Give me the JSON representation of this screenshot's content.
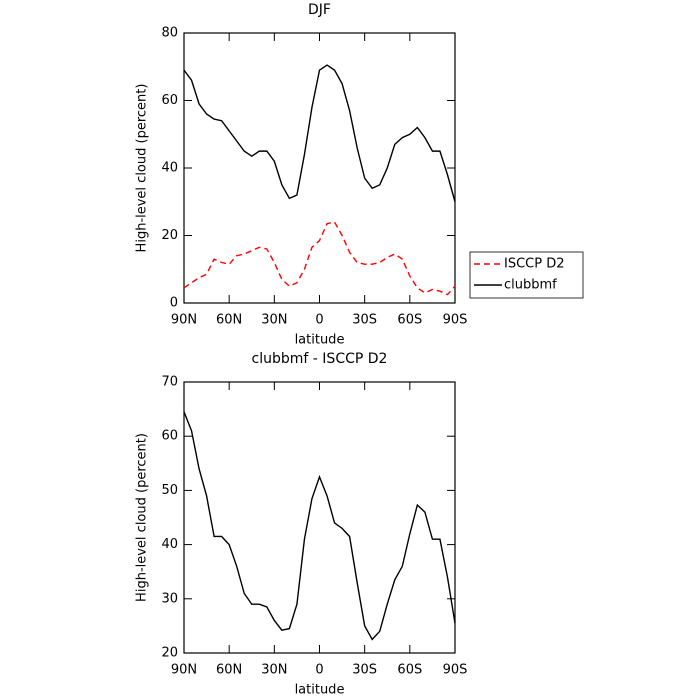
{
  "chart_data": [
    {
      "type": "line",
      "title": "DJF",
      "xlabel": "latitude",
      "ylabel": "High-level cloud (percent)",
      "x": [
        90,
        85,
        80,
        75,
        70,
        65,
        60,
        55,
        50,
        45,
        40,
        35,
        30,
        25,
        20,
        15,
        10,
        5,
        0,
        -5,
        -10,
        -15,
        -20,
        -25,
        -30,
        -35,
        -40,
        -45,
        -50,
        -55,
        -60,
        -65,
        -70,
        -75,
        -80,
        -85,
        -90
      ],
      "xlim": [
        90,
        -90
      ],
      "xticks": [
        {
          "value": 90,
          "label": "90N"
        },
        {
          "value": 60,
          "label": "60N"
        },
        {
          "value": 30,
          "label": "30N"
        },
        0,
        {
          "value": -30,
          "label": "30S"
        },
        {
          "value": -60,
          "label": "60S"
        },
        {
          "value": -90,
          "label": "90S"
        }
      ],
      "ylim": [
        0,
        80
      ],
      "yticks": [
        0,
        20,
        40,
        60,
        80
      ],
      "legend": "right",
      "series": [
        {
          "name": "ISCCP D2",
          "color": "#ff0000",
          "style": "dashed",
          "values": [
            4.5,
            6,
            7.5,
            8.5,
            13,
            12,
            11.5,
            14,
            14.5,
            15.5,
            16.5,
            16,
            12,
            7,
            5,
            6,
            10,
            16.5,
            18.5,
            23.5,
            24,
            20,
            15,
            12,
            11.5,
            11.5,
            12,
            13.5,
            14.5,
            13,
            8,
            4.5,
            3,
            4,
            3.5,
            2.5,
            5
          ]
        },
        {
          "name": "clubbmf",
          "color": "#000000",
          "style": "solid",
          "values": [
            69,
            66,
            59,
            56,
            54.5,
            54,
            51,
            48,
            45,
            43.5,
            45,
            45,
            42,
            35,
            31,
            32,
            44,
            58,
            69,
            70.5,
            69,
            65,
            57,
            46,
            37,
            34,
            35,
            40,
            47,
            49,
            50,
            52,
            49,
            45,
            45,
            38,
            30
          ]
        }
      ]
    },
    {
      "type": "line",
      "title": "clubbmf - ISCCP D2",
      "xlabel": "latitude",
      "ylabel": "High-level cloud (percent)",
      "x": [
        90,
        85,
        80,
        75,
        70,
        65,
        60,
        55,
        50,
        45,
        40,
        35,
        30,
        25,
        20,
        15,
        10,
        5,
        0,
        -5,
        -10,
        -15,
        -20,
        -25,
        -30,
        -35,
        -40,
        -45,
        -50,
        -55,
        -60,
        -65,
        -70,
        -75,
        -80,
        -85,
        -90
      ],
      "xlim": [
        90,
        -90
      ],
      "xticks": [
        {
          "value": 90,
          "label": "90N"
        },
        {
          "value": 60,
          "label": "60N"
        },
        {
          "value": 30,
          "label": "30N"
        },
        0,
        {
          "value": -30,
          "label": "30S"
        },
        {
          "value": -60,
          "label": "60S"
        },
        {
          "value": -90,
          "label": "90S"
        }
      ],
      "ylim": [
        20,
        70
      ],
      "yticks": [
        20,
        30,
        40,
        50,
        60,
        70
      ],
      "series": [
        {
          "color": "#000000",
          "style": "solid",
          "values": [
            64.5,
            61,
            54,
            49,
            41.5,
            41.5,
            40,
            36,
            31,
            29,
            29,
            28.5,
            26,
            24.2,
            24.5,
            29,
            41,
            48.5,
            52.5,
            49,
            44,
            43,
            41.5,
            33,
            25,
            22.5,
            24,
            29,
            33.5,
            36,
            42,
            47.3,
            46,
            41,
            41,
            34,
            25.5
          ]
        }
      ]
    }
  ]
}
